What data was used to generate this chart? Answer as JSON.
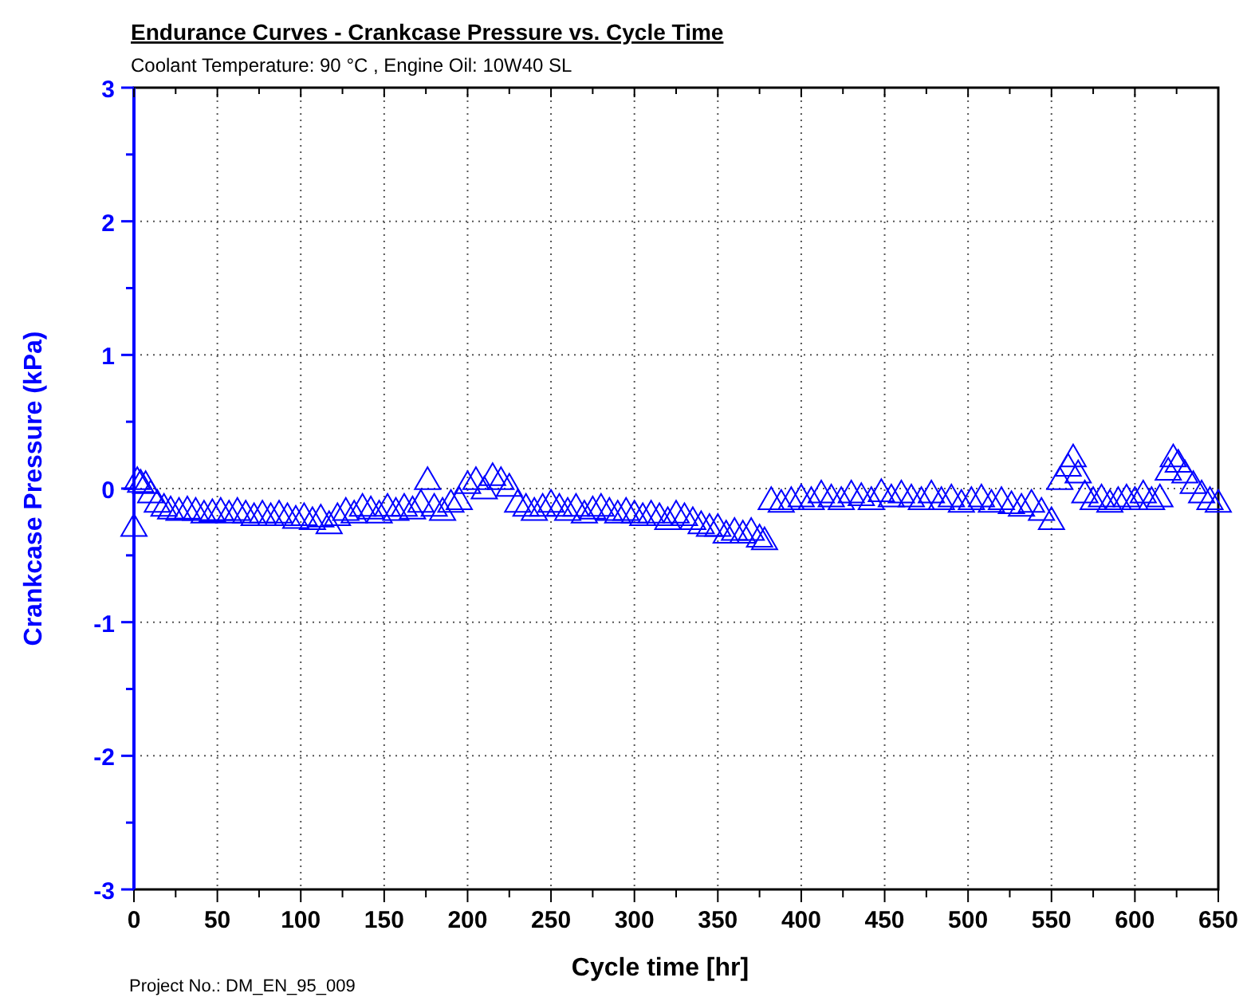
{
  "chart_data": {
    "type": "scatter",
    "title": "Endurance  Curves - Crankcase Pressure  vs. Cycle Time",
    "subtitle": "Coolant Temperature: 90 °C , Engine Oil: 10W40 SL",
    "xlabel": "Cycle time [hr]",
    "ylabel": "Crankcase Pressure (kPa)",
    "annotations": [
      "Project No.: DM_EN_95_009"
    ],
    "xlim": [
      0,
      650
    ],
    "ylim": [
      -3,
      3
    ],
    "xticks": [
      0,
      {
        "value": 25,
        "label": null
      },
      50,
      {
        "value": 75,
        "label": null
      },
      100,
      {
        "value": 125,
        "label": null
      },
      150,
      {
        "value": 175,
        "label": null
      },
      200,
      {
        "value": 225,
        "label": null
      },
      250,
      {
        "value": 275,
        "label": null
      },
      300,
      {
        "value": 325,
        "label": null
      },
      350,
      {
        "value": 375,
        "label": null
      },
      400,
      {
        "value": 425,
        "label": null
      },
      450,
      {
        "value": 475,
        "label": null
      },
      500,
      {
        "value": 525,
        "label": null
      },
      550,
      {
        "value": 575,
        "label": null
      },
      600,
      {
        "value": 625,
        "label": null
      },
      650
    ],
    "yticks": [
      -3,
      {
        "value": -2.5,
        "label": null
      },
      -2,
      {
        "value": -1.5,
        "label": null
      },
      -1,
      {
        "value": -0.5,
        "label": null
      },
      0,
      {
        "value": 0.5,
        "label": null
      },
      1,
      {
        "value": 1.5,
        "label": null
      },
      2,
      {
        "value": 2.5,
        "label": null
      },
      3
    ],
    "grid": true,
    "marker": "triangle",
    "series": [
      {
        "color": "#0000ff",
        "x": [
          0,
          2,
          4,
          7,
          10,
          14,
          18,
          22,
          27,
          32,
          37,
          42,
          47,
          52,
          57,
          62,
          67,
          72,
          77,
          82,
          87,
          92,
          97,
          102,
          107,
          112,
          117,
          122,
          127,
          132,
          137,
          142,
          147,
          152,
          157,
          162,
          167,
          172,
          176,
          180,
          185,
          190,
          195,
          200,
          205,
          210,
          215,
          220,
          225,
          230,
          235,
          240,
          245,
          250,
          255,
          260,
          265,
          270,
          275,
          280,
          285,
          290,
          295,
          300,
          305,
          310,
          315,
          320,
          325,
          330,
          335,
          340,
          345,
          350,
          355,
          360,
          365,
          370,
          375,
          378,
          382,
          388,
          394,
          400,
          406,
          412,
          418,
          424,
          430,
          436,
          442,
          448,
          454,
          460,
          466,
          472,
          478,
          484,
          490,
          496,
          502,
          508,
          514,
          520,
          526,
          532,
          538,
          544,
          550,
          555,
          560,
          563,
          566,
          570,
          575,
          580,
          585,
          590,
          595,
          600,
          605,
          610,
          615,
          620,
          623,
          626,
          630,
          635,
          640,
          645,
          650
        ],
        "values": [
          -0.3,
          0.05,
          0.03,
          0.02,
          -0.05,
          -0.12,
          -0.15,
          -0.17,
          -0.18,
          -0.17,
          -0.18,
          -0.2,
          -0.19,
          -0.18,
          -0.2,
          -0.18,
          -0.2,
          -0.22,
          -0.2,
          -0.22,
          -0.2,
          -0.22,
          -0.24,
          -0.22,
          -0.25,
          -0.23,
          -0.28,
          -0.22,
          -0.18,
          -0.2,
          -0.15,
          -0.17,
          -0.2,
          -0.15,
          -0.18,
          -0.15,
          -0.17,
          -0.12,
          0.05,
          -0.15,
          -0.18,
          -0.12,
          -0.1,
          0.02,
          0.05,
          -0.02,
          0.08,
          0.05,
          0.0,
          -0.12,
          -0.15,
          -0.18,
          -0.15,
          -0.12,
          -0.15,
          -0.18,
          -0.15,
          -0.2,
          -0.17,
          -0.15,
          -0.18,
          -0.2,
          -0.18,
          -0.2,
          -0.22,
          -0.2,
          -0.22,
          -0.25,
          -0.2,
          -0.22,
          -0.25,
          -0.28,
          -0.3,
          -0.3,
          -0.35,
          -0.33,
          -0.35,
          -0.33,
          -0.38,
          -0.4,
          -0.1,
          -0.12,
          -0.1,
          -0.08,
          -0.1,
          -0.05,
          -0.08,
          -0.1,
          -0.05,
          -0.07,
          -0.1,
          -0.04,
          -0.08,
          -0.05,
          -0.08,
          -0.1,
          -0.05,
          -0.1,
          -0.08,
          -0.12,
          -0.1,
          -0.08,
          -0.12,
          -0.1,
          -0.13,
          -0.15,
          -0.12,
          -0.18,
          -0.25,
          0.05,
          0.15,
          0.22,
          0.1,
          -0.05,
          -0.1,
          -0.08,
          -0.12,
          -0.1,
          -0.08,
          -0.1,
          -0.05,
          -0.1,
          -0.08,
          0.12,
          0.22,
          0.18,
          0.1,
          0.02,
          -0.05,
          -0.1,
          -0.12
        ]
      }
    ]
  }
}
